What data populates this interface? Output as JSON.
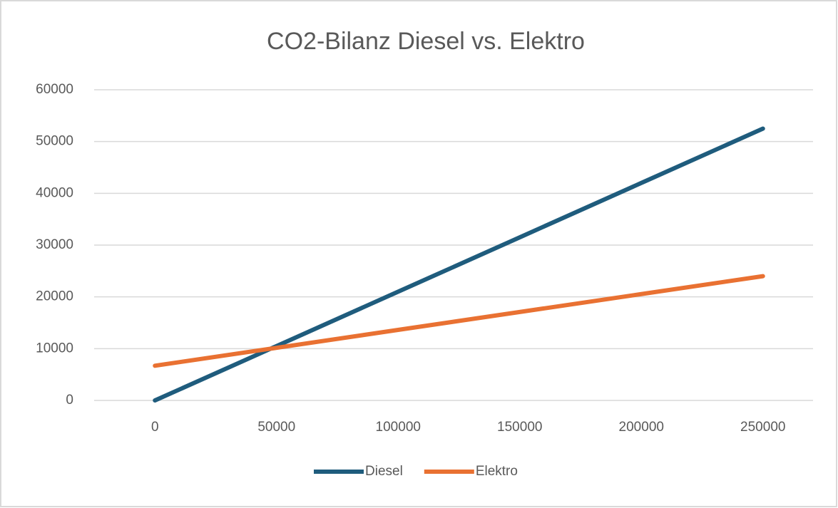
{
  "chart_data": {
    "type": "line",
    "title": "CO2-Bilanz Diesel vs. Elektro",
    "categories": [
      "0",
      "50000",
      "100000",
      "150000",
      "200000",
      "250000"
    ],
    "series": [
      {
        "name": "Diesel",
        "color": "#1f5c7d",
        "values": [
          0,
          10500,
          21000,
          31500,
          42000,
          52500
        ]
      },
      {
        "name": "Elektro",
        "color": "#e97132",
        "values": [
          6700,
          10160,
          13620,
          17080,
          20540,
          24000
        ]
      }
    ],
    "ylim": [
      0,
      60000
    ],
    "yticks": [
      0,
      10000,
      20000,
      30000,
      40000,
      50000,
      60000
    ],
    "grid": true,
    "legend": "bottom"
  }
}
